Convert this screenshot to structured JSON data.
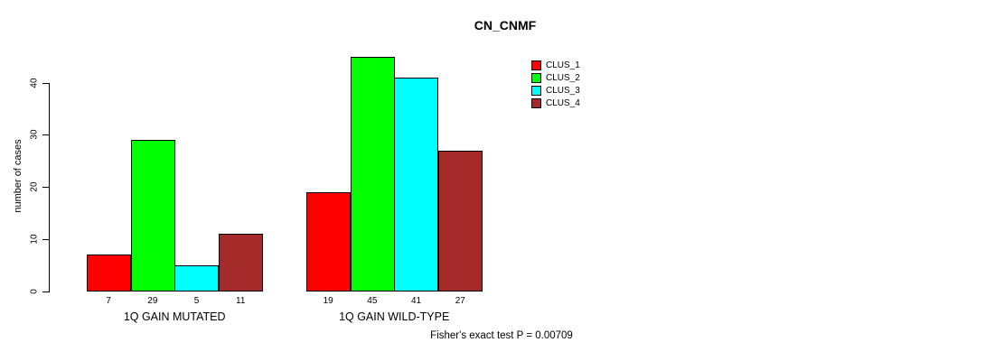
{
  "chart_data": {
    "type": "bar",
    "title": "CN_CNMF",
    "ylabel": "number of cases",
    "annotation": "Fisher's exact test P = 0.00709",
    "categories": [
      "1Q GAIN MUTATED",
      "1Q GAIN WILD-TYPE"
    ],
    "series": [
      {
        "name": "CLUS_1",
        "color": "#FF0000",
        "values": [
          7,
          19
        ]
      },
      {
        "name": "CLUS_2",
        "color": "#00FF00",
        "values": [
          29,
          45
        ]
      },
      {
        "name": "CLUS_3",
        "color": "#00FFFF",
        "values": [
          5,
          41
        ]
      },
      {
        "name": "CLUS_4",
        "color": "#A52A2A",
        "values": [
          11,
          27
        ]
      }
    ],
    "yticks": [
      0,
      10,
      20,
      30,
      40
    ],
    "ylim": [
      0,
      45
    ],
    "grid": false,
    "legend_position": "top-right",
    "bar_borders": "#000000",
    "background": "#FFFFFF"
  }
}
